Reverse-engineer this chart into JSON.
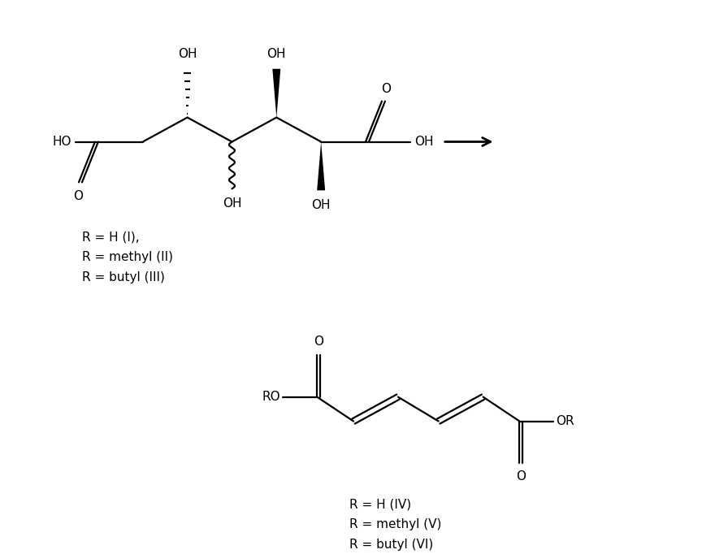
{
  "bg_color": "#ffffff",
  "figsize": [
    8.96,
    6.82
  ],
  "dpi": 100,
  "label_top1": "R = H (I),",
  "label_top2": "R = methyl (II)",
  "label_top3": "R = butyl (III)",
  "label_bot1": "R = H (IV)",
  "label_bot2": "R = methyl (V)",
  "label_bot3": "R = butyl (VI)",
  "line_color": "#000000",
  "line_width": 1.6,
  "font_size": 11
}
